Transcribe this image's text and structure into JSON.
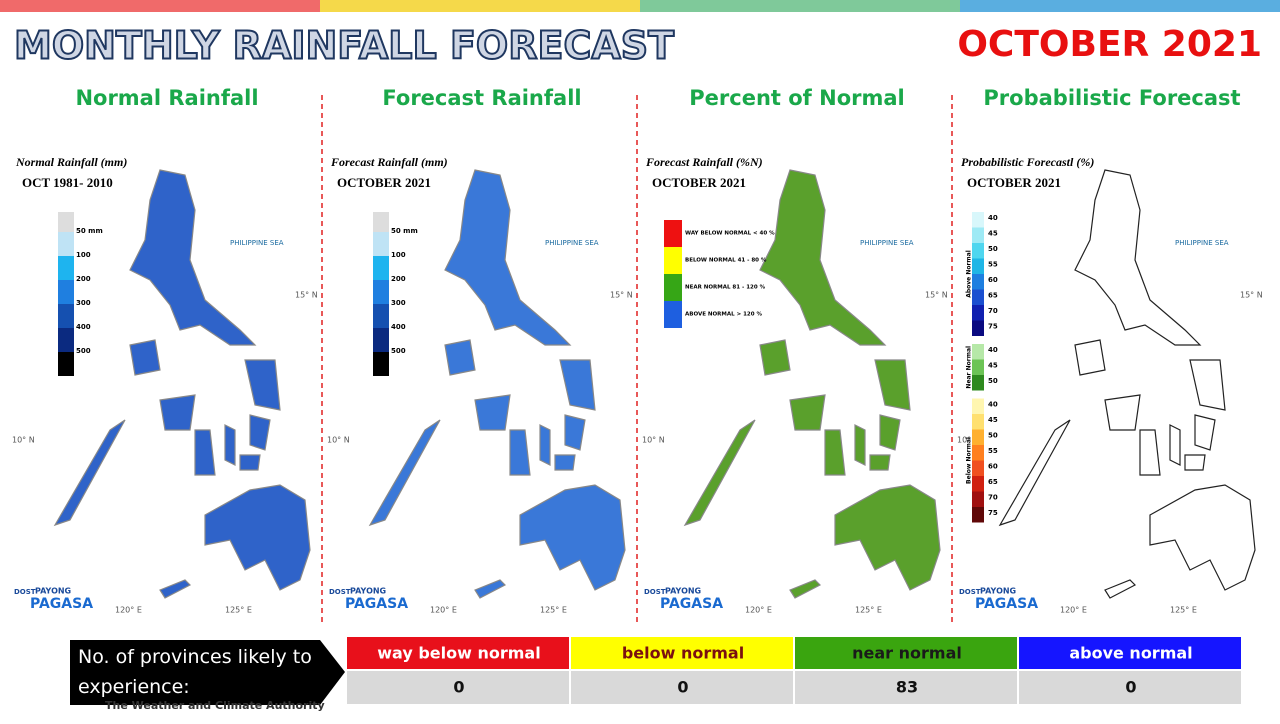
{
  "header": {
    "title": "MONTHLY RAINFALL FORECAST",
    "date": "OCTOBER 2021"
  },
  "map_labels": {
    "sea": "PHILIPPINE SEA",
    "lon": [
      "120° E",
      "125° E"
    ],
    "lat": [
      "15° N",
      "10° N"
    ],
    "logo_top": "DOST",
    "logo_brand": "PAYONG",
    "logo_name": "PAGASA"
  },
  "panels": [
    {
      "title": "Normal Rainfall",
      "map_title": "Normal Rainfall (mm)",
      "map_subtitle": "OCT 1981- 2010",
      "map_fill": "#2f63c9",
      "legend": [
        {
          "label": "50 mm",
          "color": "#bfe3f5"
        },
        {
          "label": "100",
          "color": "#1eb4ef"
        },
        {
          "label": "200",
          "color": "#1f7fe0"
        },
        {
          "label": "300",
          "color": "#1550b0"
        },
        {
          "label": "400",
          "color": "#0b2a80"
        },
        {
          "label": "500",
          "color": "#000000"
        }
      ]
    },
    {
      "title": "Forecast Rainfall",
      "map_title": "Forecast Rainfall (mm)",
      "map_subtitle": "OCTOBER 2021",
      "map_fill": "#3a78d8",
      "legend": [
        {
          "label": "50 mm",
          "color": "#bfe3f5"
        },
        {
          "label": "100",
          "color": "#1eb4ef"
        },
        {
          "label": "200",
          "color": "#1f7fe0"
        },
        {
          "label": "300",
          "color": "#1550b0"
        },
        {
          "label": "400",
          "color": "#0b2a80"
        },
        {
          "label": "500",
          "color": "#000000"
        }
      ]
    },
    {
      "title": "Percent of Normal",
      "map_title": "Forecast Rainfall (%N)",
      "map_subtitle": "OCTOBER 2021",
      "map_fill": "#5aa02c",
      "legend": [
        {
          "label": "WAY BELOW NORMAL < 40 %",
          "color": "#ee1111"
        },
        {
          "label": "BELOW NORMAL 41 - 80 %",
          "color": "#ffff00"
        },
        {
          "label": "NEAR NORMAL 81 - 120 %",
          "color": "#36a616"
        },
        {
          "label": "ABOVE NORMAL > 120 %",
          "color": "#1e5fe0"
        }
      ]
    },
    {
      "title": "Probabilistic Forecast",
      "map_title": "Probabilistic Forecastl (%)",
      "map_subtitle": "OCTOBER 2021",
      "map_fill": "#ffffff",
      "groups": [
        {
          "name": "Above Normal",
          "levels": [
            40,
            45,
            50,
            55,
            60,
            65,
            70,
            75
          ],
          "colors": [
            "#d8f7fb",
            "#9eeaf5",
            "#4fd6ef",
            "#1fb6e6",
            "#1e7fe0",
            "#1b4fd0",
            "#1020b0",
            "#0a0a80"
          ]
        },
        {
          "name": "Near Normal",
          "levels": [
            40,
            45,
            50
          ],
          "colors": [
            "#b6e8a8",
            "#6cc455",
            "#2e8a1e"
          ]
        },
        {
          "name": "Below Normal",
          "levels": [
            40,
            45,
            50,
            55,
            60,
            65,
            70,
            75
          ],
          "colors": [
            "#fff6b0",
            "#ffe070",
            "#ffb030",
            "#ff8020",
            "#f05020",
            "#d02010",
            "#a01010",
            "#600808"
          ]
        }
      ]
    }
  ],
  "table": {
    "label": "No. of provinces likely to experience:",
    "headers": [
      {
        "text": "way below normal",
        "bg": "#e8101b",
        "fg": "#ffffff"
      },
      {
        "text": "below normal",
        "bg": "#ffff00",
        "fg": "#7a1010"
      },
      {
        "text": "near normal",
        "bg": "#3aa50f",
        "fg": "#1a1a1a"
      },
      {
        "text": "above normal",
        "bg": "#1515ff",
        "fg": "#ffffff"
      }
    ],
    "values": [
      "0",
      "0",
      "83",
      "0"
    ]
  },
  "footer": {
    "tagline": "The Weather and Climate Authority"
  }
}
